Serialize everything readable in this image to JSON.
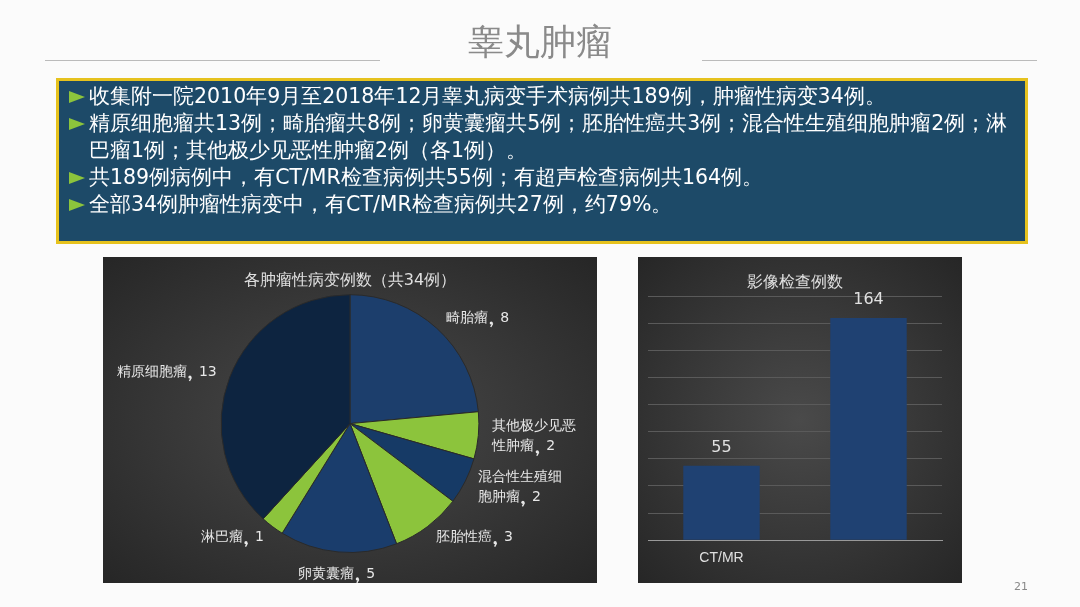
{
  "chart_data": [
    {
      "type": "other",
      "title": "睾丸肿瘤",
      "annotations": [
        "收集附一院2010年9月至2018年12月睾丸病变手术病例共189例，肿瘤性病变34例。",
        "精原细胞瘤共13例；畸胎瘤共8例；卵黄囊瘤共5例；胚胎性癌共3例；混合性生殖细胞肿瘤2例；淋巴瘤1例；其他极少见恶性肿瘤2例（各1例）。",
        "共189例病例中，有CT/MR检查病例共55例；有超声检查病例共164例。",
        "全部34例肿瘤性病变中，有CT/MR检查病例共27例，约79%。",
        "21"
      ]
    },
    {
      "type": "pie",
      "title": "各肿瘤性病变例数（共34例）",
      "categories": [
        "畸胎瘤",
        "其他极少见恶性肿瘤",
        "混合性生殖细胞肿瘤",
        "胚胎性癌",
        "卵黄囊瘤",
        "淋巴瘤",
        "精原细胞瘤"
      ],
      "values": [
        8,
        2,
        2,
        3,
        5,
        1,
        13
      ],
      "colors": [
        "#1c3e6c",
        "#8cc43c",
        "#163a66",
        "#8cc43c",
        "#1a3d6c",
        "#8cc43c",
        "#0d2440"
      ],
      "data_labels": true,
      "legend": false
    },
    {
      "type": "bar",
      "title": "影像检查例数",
      "categories": [
        "CT/MR",
        null
      ],
      "values": [
        55,
        164
      ],
      "color": "#1f4172",
      "ylim": [
        0,
        180
      ],
      "yticks": [
        {
          "value": 0,
          "label": null
        },
        {
          "value": 20,
          "label": null
        },
        {
          "value": 40,
          "label": null
        },
        {
          "value": 60,
          "label": null
        },
        {
          "value": 80,
          "label": null
        },
        {
          "value": 100,
          "label": null
        },
        {
          "value": 120,
          "label": null
        },
        {
          "value": 140,
          "label": null
        },
        {
          "value": 160,
          "label": null
        },
        {
          "value": 180,
          "label": null
        }
      ],
      "tick_labels": "x",
      "grid": "y",
      "data_labels": true,
      "legend": false
    }
  ]
}
